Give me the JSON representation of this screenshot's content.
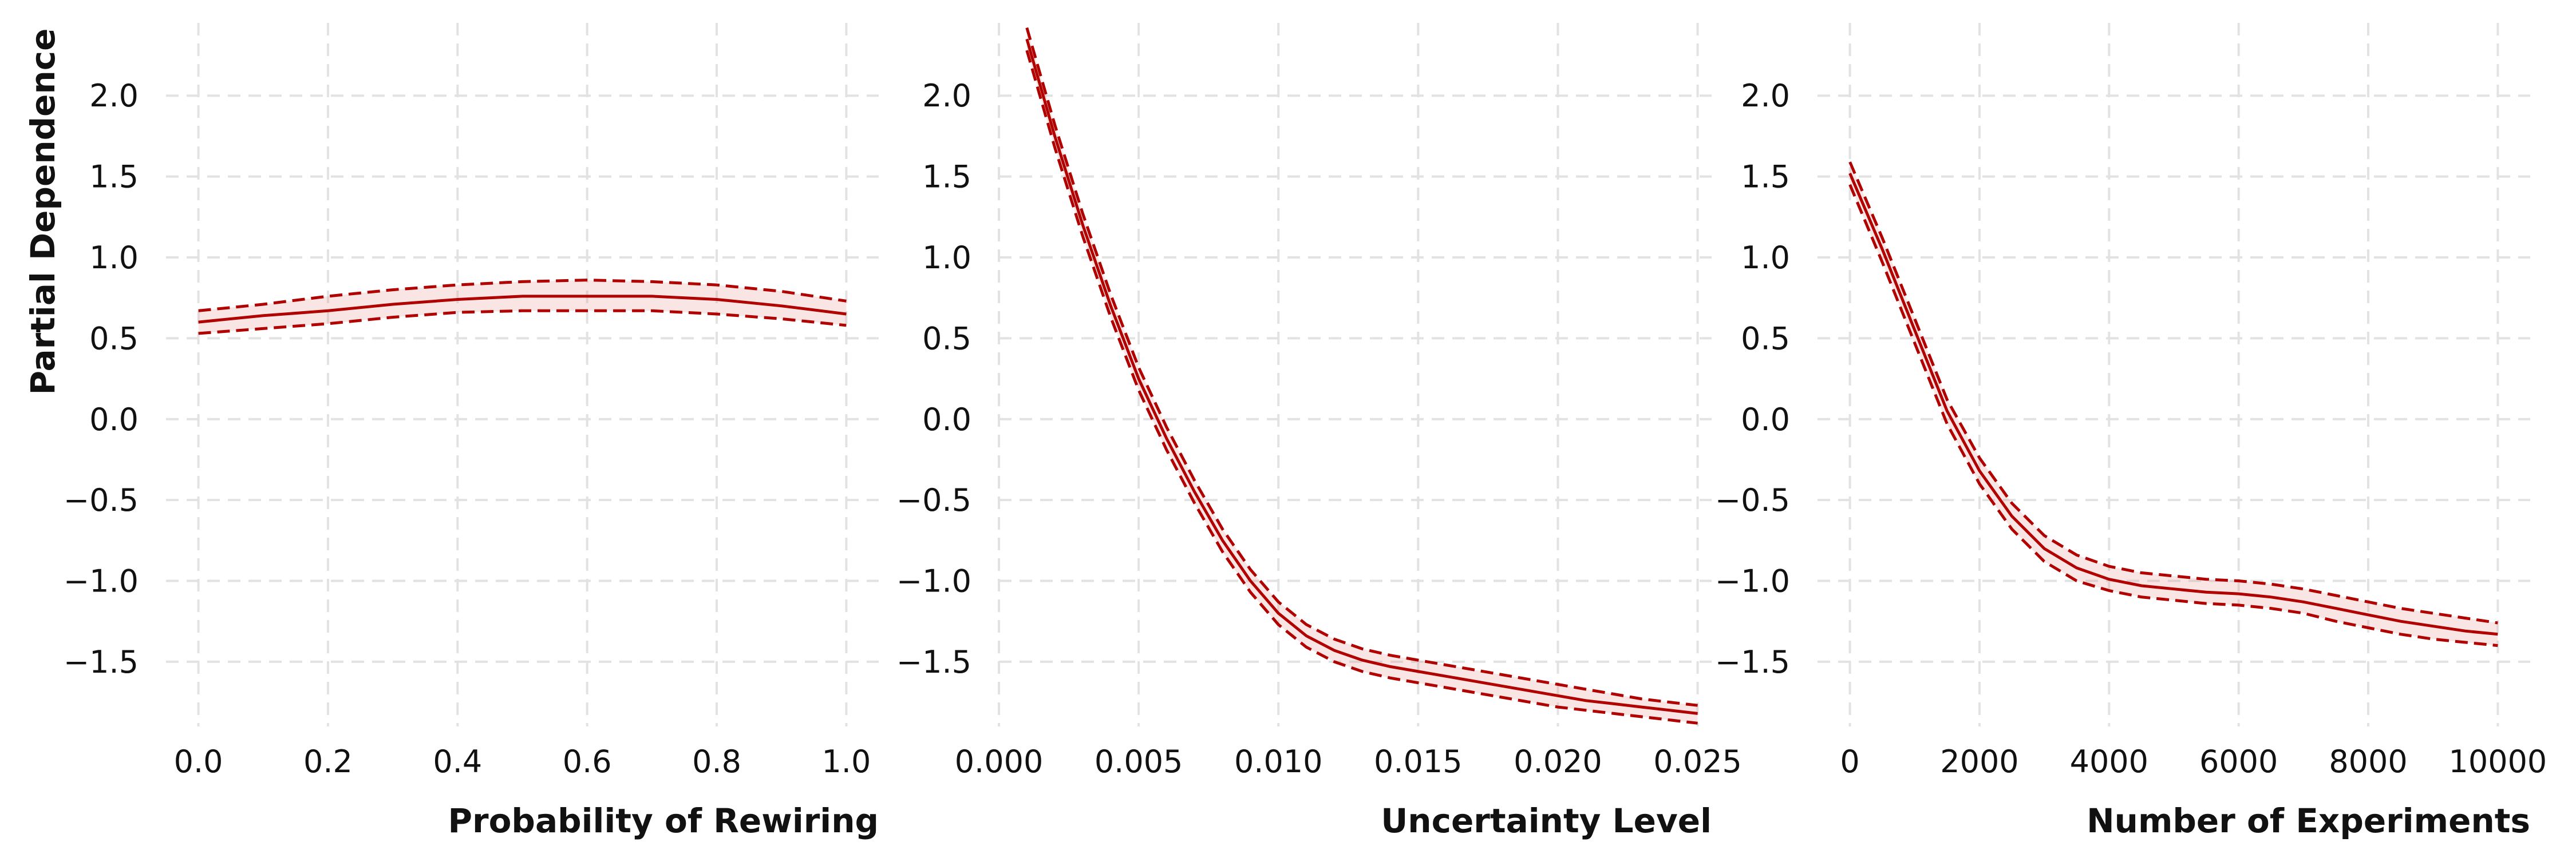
{
  "colors": {
    "line": "#b00000",
    "band": "#e88a8a",
    "grid": "#e2e2e2"
  },
  "ylabel": "Partial Dependence",
  "chart_data": [
    {
      "type": "line",
      "xlabel": "Probability of Rewiring",
      "ylabel": "Partial Dependence",
      "grid": true,
      "xlim": [
        -0.05,
        1.05
      ],
      "ylim": [
        -1.9,
        2.45
      ],
      "xticks": [
        0.0,
        0.2,
        0.4,
        0.6,
        0.8,
        1.0
      ],
      "xtick_labels": [
        "0.0",
        "0.2",
        "0.4",
        "0.6",
        "0.8",
        "1.0"
      ],
      "yticks": [
        -1.5,
        -1.0,
        -0.5,
        0.0,
        0.5,
        1.0,
        1.5,
        2.0
      ],
      "ytick_labels": [
        "−1.5",
        "−1.0",
        "−0.5",
        "0.0",
        "0.5",
        "1.0",
        "1.5",
        "2.0"
      ],
      "x": [
        0.0,
        0.1,
        0.2,
        0.3,
        0.4,
        0.5,
        0.6,
        0.7,
        0.8,
        0.9,
        1.0
      ],
      "series": [
        {
          "role": "mean",
          "values": [
            0.6,
            0.64,
            0.67,
            0.71,
            0.74,
            0.76,
            0.76,
            0.76,
            0.74,
            0.7,
            0.65
          ]
        },
        {
          "role": "lower",
          "values": [
            0.53,
            0.56,
            0.59,
            0.63,
            0.66,
            0.67,
            0.67,
            0.67,
            0.65,
            0.62,
            0.58
          ]
        },
        {
          "role": "upper",
          "values": [
            0.67,
            0.71,
            0.76,
            0.8,
            0.83,
            0.85,
            0.86,
            0.85,
            0.83,
            0.79,
            0.73
          ]
        }
      ]
    },
    {
      "type": "line",
      "xlabel": "Uncertainty Level",
      "grid": true,
      "xlim": [
        0.0,
        0.0255
      ],
      "ylim": [
        -1.9,
        2.45
      ],
      "xticks": [
        0.0,
        0.005,
        0.01,
        0.015,
        0.02,
        0.025
      ],
      "xtick_labels": [
        "0.000",
        "0.005",
        "0.010",
        "0.015",
        "0.020",
        "0.025"
      ],
      "yticks": [
        -1.5,
        -1.0,
        -0.5,
        0.0,
        0.5,
        1.0,
        1.5,
        2.0
      ],
      "ytick_labels": [
        "−1.5",
        "−1.0",
        "−0.5",
        "0.0",
        "0.5",
        "1.0",
        "1.5",
        "2.0"
      ],
      "x": [
        0.001,
        0.002,
        0.003,
        0.004,
        0.005,
        0.006,
        0.007,
        0.008,
        0.009,
        0.01,
        0.011,
        0.012,
        0.013,
        0.014,
        0.015,
        0.016,
        0.017,
        0.018,
        0.019,
        0.02,
        0.021,
        0.022,
        0.023,
        0.024,
        0.025
      ],
      "series": [
        {
          "role": "mean",
          "values": [
            2.35,
            1.75,
            1.2,
            0.7,
            0.25,
            -0.12,
            -0.45,
            -0.75,
            -1.0,
            -1.2,
            -1.34,
            -1.43,
            -1.49,
            -1.53,
            -1.56,
            -1.59,
            -1.62,
            -1.65,
            -1.68,
            -1.71,
            -1.74,
            -1.76,
            -1.78,
            -1.8,
            -1.82
          ]
        },
        {
          "role": "lower",
          "values": [
            2.28,
            1.68,
            1.13,
            0.63,
            0.18,
            -0.19,
            -0.52,
            -0.82,
            -1.07,
            -1.27,
            -1.41,
            -1.5,
            -1.56,
            -1.6,
            -1.63,
            -1.66,
            -1.69,
            -1.72,
            -1.75,
            -1.78,
            -1.8,
            -1.82,
            -1.84,
            -1.86,
            -1.88
          ]
        },
        {
          "role": "upper",
          "values": [
            2.42,
            1.82,
            1.27,
            0.77,
            0.32,
            -0.05,
            -0.38,
            -0.68,
            -0.93,
            -1.13,
            -1.27,
            -1.36,
            -1.42,
            -1.46,
            -1.49,
            -1.52,
            -1.55,
            -1.58,
            -1.61,
            -1.64,
            -1.67,
            -1.7,
            -1.73,
            -1.75,
            -1.77
          ]
        }
      ]
    },
    {
      "type": "line",
      "xlabel": "Number of Experiments",
      "grid": true,
      "xlim": [
        -500,
        10500
      ],
      "ylim": [
        -1.9,
        2.45
      ],
      "xticks": [
        0,
        2000,
        4000,
        6000,
        8000,
        10000
      ],
      "xtick_labels": [
        "0",
        "2000",
        "4000",
        "6000",
        "8000",
        "10000"
      ],
      "yticks": [
        -1.5,
        -1.0,
        -0.5,
        0.0,
        0.5,
        1.0,
        1.5,
        2.0
      ],
      "ytick_labels": [
        "−1.5",
        "−1.0",
        "−0.5",
        "0.0",
        "0.5",
        "1.0",
        "1.5",
        "2.0"
      ],
      "x": [
        0,
        500,
        1000,
        1500,
        2000,
        2500,
        3000,
        3500,
        4000,
        4500,
        5000,
        5500,
        6000,
        6500,
        7000,
        7500,
        8000,
        8500,
        9000,
        9500,
        10000
      ],
      "series": [
        {
          "role": "mean",
          "values": [
            1.52,
            1.05,
            0.55,
            0.05,
            -0.32,
            -0.6,
            -0.8,
            -0.92,
            -0.99,
            -1.03,
            -1.05,
            -1.07,
            -1.08,
            -1.1,
            -1.13,
            -1.17,
            -1.21,
            -1.25,
            -1.28,
            -1.31,
            -1.33
          ]
        },
        {
          "role": "lower",
          "values": [
            1.45,
            0.97,
            0.47,
            -0.03,
            -0.4,
            -0.68,
            -0.88,
            -1.0,
            -1.06,
            -1.1,
            -1.12,
            -1.14,
            -1.15,
            -1.17,
            -1.2,
            -1.25,
            -1.29,
            -1.33,
            -1.36,
            -1.38,
            -1.4
          ]
        },
        {
          "role": "upper",
          "values": [
            1.59,
            1.12,
            0.62,
            0.12,
            -0.24,
            -0.52,
            -0.72,
            -0.84,
            -0.91,
            -0.95,
            -0.97,
            -0.99,
            -1.0,
            -1.02,
            -1.05,
            -1.09,
            -1.13,
            -1.17,
            -1.2,
            -1.23,
            -1.26
          ]
        }
      ]
    }
  ]
}
